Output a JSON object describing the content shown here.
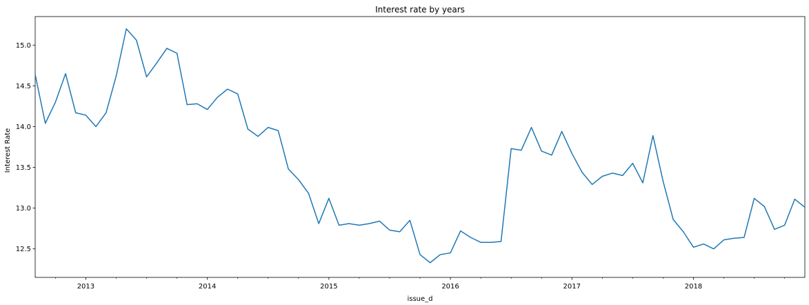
{
  "chart_data": {
    "type": "line",
    "title": "Interest rate by years",
    "xlabel": "issue_d",
    "ylabel": "Interest Rate",
    "xlim": [
      "2012-08",
      "2018-12"
    ],
    "ylim": [
      12.15,
      15.35
    ],
    "grid": false,
    "x_tick_labels": [
      "2013",
      "2014",
      "2015",
      "2016",
      "2017",
      "2018"
    ],
    "y_tick_labels": [
      "12.5",
      "13.0",
      "13.5",
      "14.0",
      "14.5",
      "15.0"
    ],
    "series": [
      {
        "color": "#1f77b4",
        "x": [
          "2012-08",
          "2012-09",
          "2012-10",
          "2012-11",
          "2012-12",
          "2013-01",
          "2013-02",
          "2013-03",
          "2013-04",
          "2013-05",
          "2013-06",
          "2013-07",
          "2013-08",
          "2013-09",
          "2013-10",
          "2013-11",
          "2013-12",
          "2014-01",
          "2014-02",
          "2014-03",
          "2014-04",
          "2014-05",
          "2014-06",
          "2014-07",
          "2014-08",
          "2014-09",
          "2014-10",
          "2014-11",
          "2014-12",
          "2015-01",
          "2015-02",
          "2015-03",
          "2015-04",
          "2015-05",
          "2015-06",
          "2015-07",
          "2015-08",
          "2015-09",
          "2015-10",
          "2015-11",
          "2015-12",
          "2016-01",
          "2016-02",
          "2016-03",
          "2016-04",
          "2016-05",
          "2016-06",
          "2016-07",
          "2016-08",
          "2016-09",
          "2016-10",
          "2016-11",
          "2016-12",
          "2017-01",
          "2017-02",
          "2017-03",
          "2017-04",
          "2017-05",
          "2017-06",
          "2017-07",
          "2017-08",
          "2017-09",
          "2017-10",
          "2017-11",
          "2017-12",
          "2018-01",
          "2018-02",
          "2018-03",
          "2018-04",
          "2018-05",
          "2018-06",
          "2018-07",
          "2018-08",
          "2018-09",
          "2018-10",
          "2018-11",
          "2018-12"
        ],
        "values": [
          14.64,
          14.04,
          14.3,
          14.65,
          14.17,
          14.14,
          14.0,
          14.17,
          14.62,
          15.2,
          15.06,
          14.61,
          14.78,
          14.96,
          14.9,
          14.27,
          14.28,
          14.21,
          14.36,
          14.46,
          14.4,
          13.97,
          13.88,
          13.99,
          13.95,
          13.48,
          13.35,
          13.18,
          12.81,
          13.12,
          12.79,
          12.81,
          12.79,
          12.81,
          12.84,
          12.73,
          12.71,
          12.85,
          12.43,
          12.33,
          12.43,
          12.45,
          12.72,
          12.64,
          12.58,
          12.58,
          12.59,
          13.73,
          13.71,
          13.99,
          13.7,
          13.65,
          13.94,
          13.67,
          13.44,
          13.29,
          13.39,
          13.43,
          13.4,
          13.55,
          13.31,
          13.89,
          13.33,
          12.86,
          12.71,
          12.52,
          12.56,
          12.5,
          12.61,
          12.63,
          12.64,
          13.12,
          13.02,
          12.74,
          12.79,
          13.11,
          13.01
        ]
      }
    ]
  }
}
